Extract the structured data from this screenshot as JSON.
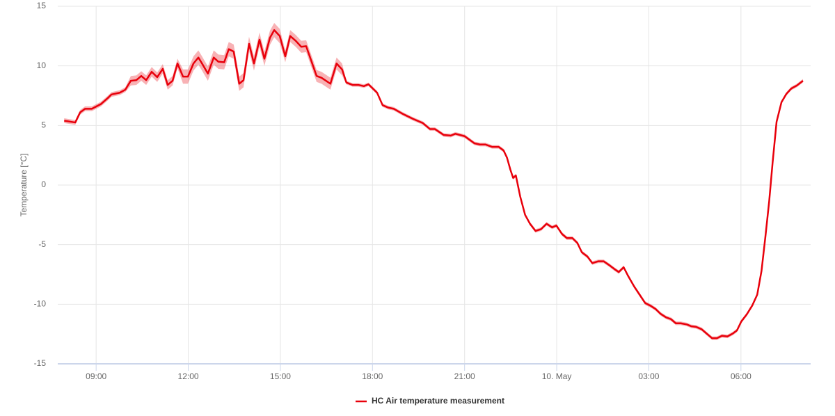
{
  "chart_data": {
    "type": "line",
    "y_label": "Temperature [°C]",
    "xlim": [
      7.75,
      32.27
    ],
    "xticks": [
      {
        "value": 9,
        "label": "09:00"
      },
      {
        "value": 12,
        "label": "12:00"
      },
      {
        "value": 15,
        "label": "15:00"
      },
      {
        "value": 18,
        "label": "18:00"
      },
      {
        "value": 21,
        "label": "21:00"
      },
      {
        "value": 24,
        "label": "10. May"
      },
      {
        "value": 27,
        "label": "03:00"
      },
      {
        "value": 30,
        "label": "06:00"
      }
    ],
    "ylim": [
      -15,
      15
    ],
    "yticks": [
      -15,
      -10,
      -5,
      0,
      5,
      10,
      15
    ],
    "grid": true,
    "legend": "bottom",
    "x": [
      7.96,
      8.32,
      8.48,
      8.64,
      8.86,
      9.16,
      9.38,
      9.5,
      9.77,
      9.95,
      10.13,
      10.31,
      10.47,
      10.63,
      10.81,
      10.99,
      11.17,
      11.33,
      11.49,
      11.65,
      11.83,
      11.99,
      12.17,
      12.33,
      12.46,
      12.64,
      12.83,
      12.98,
      13.17,
      13.32,
      13.48,
      13.66,
      13.8,
      13.98,
      14.14,
      14.32,
      14.48,
      14.66,
      14.8,
      14.98,
      15.16,
      15.32,
      15.5,
      15.68,
      15.84,
      16.18,
      16.34,
      16.63,
      16.83,
      17.01,
      17.15,
      17.35,
      17.54,
      17.72,
      17.87,
      18.15,
      18.33,
      18.51,
      18.69,
      19.0,
      19.32,
      19.64,
      19.87,
      20.03,
      20.32,
      20.55,
      20.7,
      21.0,
      21.32,
      21.5,
      21.68,
      21.9,
      22.11,
      22.27,
      22.38,
      22.49,
      22.58,
      22.67,
      22.81,
      22.97,
      23.13,
      23.31,
      23.49,
      23.67,
      23.85,
      23.99,
      24.17,
      24.33,
      24.51,
      24.67,
      24.82,
      25.0,
      25.16,
      25.35,
      25.53,
      25.7,
      25.88,
      26.02,
      26.18,
      26.32,
      26.52,
      26.7,
      26.88,
      27.07,
      27.22,
      27.38,
      27.56,
      27.72,
      27.88,
      28.04,
      28.24,
      28.38,
      28.54,
      28.72,
      28.9,
      29.06,
      29.22,
      29.38,
      29.56,
      29.74,
      29.87,
      30.01,
      30.19,
      30.37,
      30.53,
      30.67,
      30.8,
      30.92,
      31.03,
      31.16,
      31.32,
      31.48,
      31.64,
      31.82,
      32.02
    ],
    "series": [
      {
        "name": "HC Air temperature measurement",
        "color": "#e8000b",
        "band_color": "#e8000b",
        "values": [
          5.4,
          5.25,
          6.1,
          6.4,
          6.4,
          6.8,
          7.3,
          7.6,
          7.75,
          8.0,
          8.75,
          8.8,
          9.15,
          8.8,
          9.5,
          9.05,
          9.75,
          8.4,
          8.75,
          10.2,
          9.1,
          9.1,
          10.2,
          10.7,
          10.15,
          9.35,
          10.7,
          10.35,
          10.3,
          11.4,
          11.2,
          8.5,
          8.8,
          11.85,
          10.2,
          12.2,
          10.6,
          12.35,
          13.0,
          12.5,
          10.8,
          12.5,
          12.1,
          11.6,
          11.65,
          9.15,
          9.0,
          8.5,
          10.2,
          9.7,
          8.6,
          8.4,
          8.4,
          8.3,
          8.45,
          7.75,
          6.7,
          6.5,
          6.4,
          5.95,
          5.55,
          5.2,
          4.7,
          4.7,
          4.2,
          4.15,
          4.3,
          4.1,
          3.5,
          3.4,
          3.4,
          3.2,
          3.2,
          2.9,
          2.3,
          1.3,
          0.6,
          0.8,
          -0.95,
          -2.5,
          -3.25,
          -3.85,
          -3.7,
          -3.25,
          -3.55,
          -3.4,
          -4.1,
          -4.45,
          -4.45,
          -4.85,
          -5.65,
          -6.0,
          -6.55,
          -6.4,
          -6.4,
          -6.7,
          -7.05,
          -7.3,
          -6.9,
          -7.6,
          -8.5,
          -9.2,
          -9.9,
          -10.15,
          -10.4,
          -10.8,
          -11.1,
          -11.25,
          -11.6,
          -11.6,
          -11.7,
          -11.85,
          -11.9,
          -12.1,
          -12.5,
          -12.85,
          -12.85,
          -12.65,
          -12.7,
          -12.45,
          -12.2,
          -11.45,
          -10.85,
          -10.1,
          -9.2,
          -7.2,
          -4.25,
          -1.35,
          1.85,
          5.3,
          6.95,
          7.65,
          8.1,
          8.35,
          8.75
        ],
        "low": [
          5.2,
          5.05,
          5.9,
          6.2,
          6.2,
          6.6,
          7.1,
          7.4,
          7.55,
          7.8,
          8.35,
          8.4,
          8.75,
          8.4,
          9.1,
          8.65,
          9.35,
          8.0,
          8.35,
          9.8,
          8.5,
          8.5,
          9.6,
          10.1,
          9.55,
          8.75,
          10.1,
          9.75,
          9.7,
          10.8,
          10.6,
          7.9,
          8.2,
          11.25,
          9.6,
          11.6,
          10.0,
          11.75,
          12.4,
          11.9,
          10.3,
          12.0,
          11.6,
          11.1,
          11.15,
          8.65,
          8.5,
          8.0,
          9.7,
          9.2,
          8.45,
          8.25,
          8.25,
          8.15,
          8.3,
          7.6,
          6.55,
          6.35,
          6.25,
          5.8,
          5.4,
          5.05,
          4.55,
          4.55,
          4.05,
          4.0,
          4.15,
          3.95,
          3.35,
          3.25,
          3.25,
          3.05,
          3.05,
          2.75,
          2.15,
          1.15,
          0.45,
          0.65,
          -1.1,
          -2.65,
          -3.4,
          -4.0,
          -3.85,
          -3.4,
          -3.7,
          -3.55,
          -4.25,
          -4.6,
          -4.6,
          -5.0,
          -5.8,
          -6.15,
          -6.7,
          -6.55,
          -6.55,
          -6.85,
          -7.2,
          -7.45,
          -7.05,
          -7.75,
          -8.65,
          -9.35,
          -10.05,
          -10.3,
          -10.55,
          -10.95,
          -11.25,
          -11.4,
          -11.75,
          -11.75,
          -11.85,
          -12.0,
          -12.05,
          -12.25,
          -12.65,
          -13.0,
          -13.0,
          -12.8,
          -12.85,
          -12.6,
          -12.35,
          -11.6,
          -11.0,
          -10.25,
          -9.35,
          -7.35,
          -4.4,
          -1.5,
          1.7,
          5.15,
          6.8,
          7.5,
          7.95,
          8.2,
          8.6
        ],
        "high": [
          5.6,
          5.45,
          6.3,
          6.6,
          6.6,
          7.0,
          7.5,
          7.8,
          7.95,
          8.2,
          9.15,
          9.2,
          9.55,
          9.2,
          9.9,
          9.45,
          10.15,
          8.8,
          9.15,
          10.6,
          9.7,
          9.7,
          10.8,
          11.3,
          10.75,
          9.95,
          11.3,
          10.95,
          10.9,
          12.0,
          11.8,
          9.1,
          9.4,
          12.45,
          10.8,
          12.8,
          11.2,
          12.95,
          13.6,
          13.1,
          11.3,
          13.0,
          12.6,
          12.1,
          12.15,
          9.65,
          9.5,
          9.0,
          10.7,
          10.2,
          8.75,
          8.55,
          8.55,
          8.45,
          8.6,
          7.9,
          6.85,
          6.65,
          6.55,
          6.1,
          5.7,
          5.35,
          4.85,
          4.85,
          4.35,
          4.3,
          4.45,
          4.25,
          3.65,
          3.55,
          3.55,
          3.35,
          3.35,
          3.05,
          2.45,
          1.45,
          0.75,
          0.95,
          -0.8,
          -2.35,
          -3.1,
          -3.7,
          -3.55,
          -3.1,
          -3.4,
          -3.25,
          -3.95,
          -4.3,
          -4.3,
          -4.7,
          -5.5,
          -5.85,
          -6.4,
          -6.25,
          -6.25,
          -6.55,
          -6.9,
          -7.15,
          -6.75,
          -7.45,
          -8.35,
          -9.05,
          -9.75,
          -10.0,
          -10.25,
          -10.65,
          -10.95,
          -11.1,
          -11.45,
          -11.45,
          -11.55,
          -11.7,
          -11.75,
          -11.95,
          -12.35,
          -12.7,
          -12.7,
          -12.5,
          -12.55,
          -12.3,
          -12.05,
          -11.3,
          -10.7,
          -9.95,
          -9.05,
          -7.05,
          -4.1,
          -1.2,
          2.0,
          5.45,
          7.1,
          7.8,
          8.25,
          8.5,
          8.9
        ]
      }
    ]
  }
}
